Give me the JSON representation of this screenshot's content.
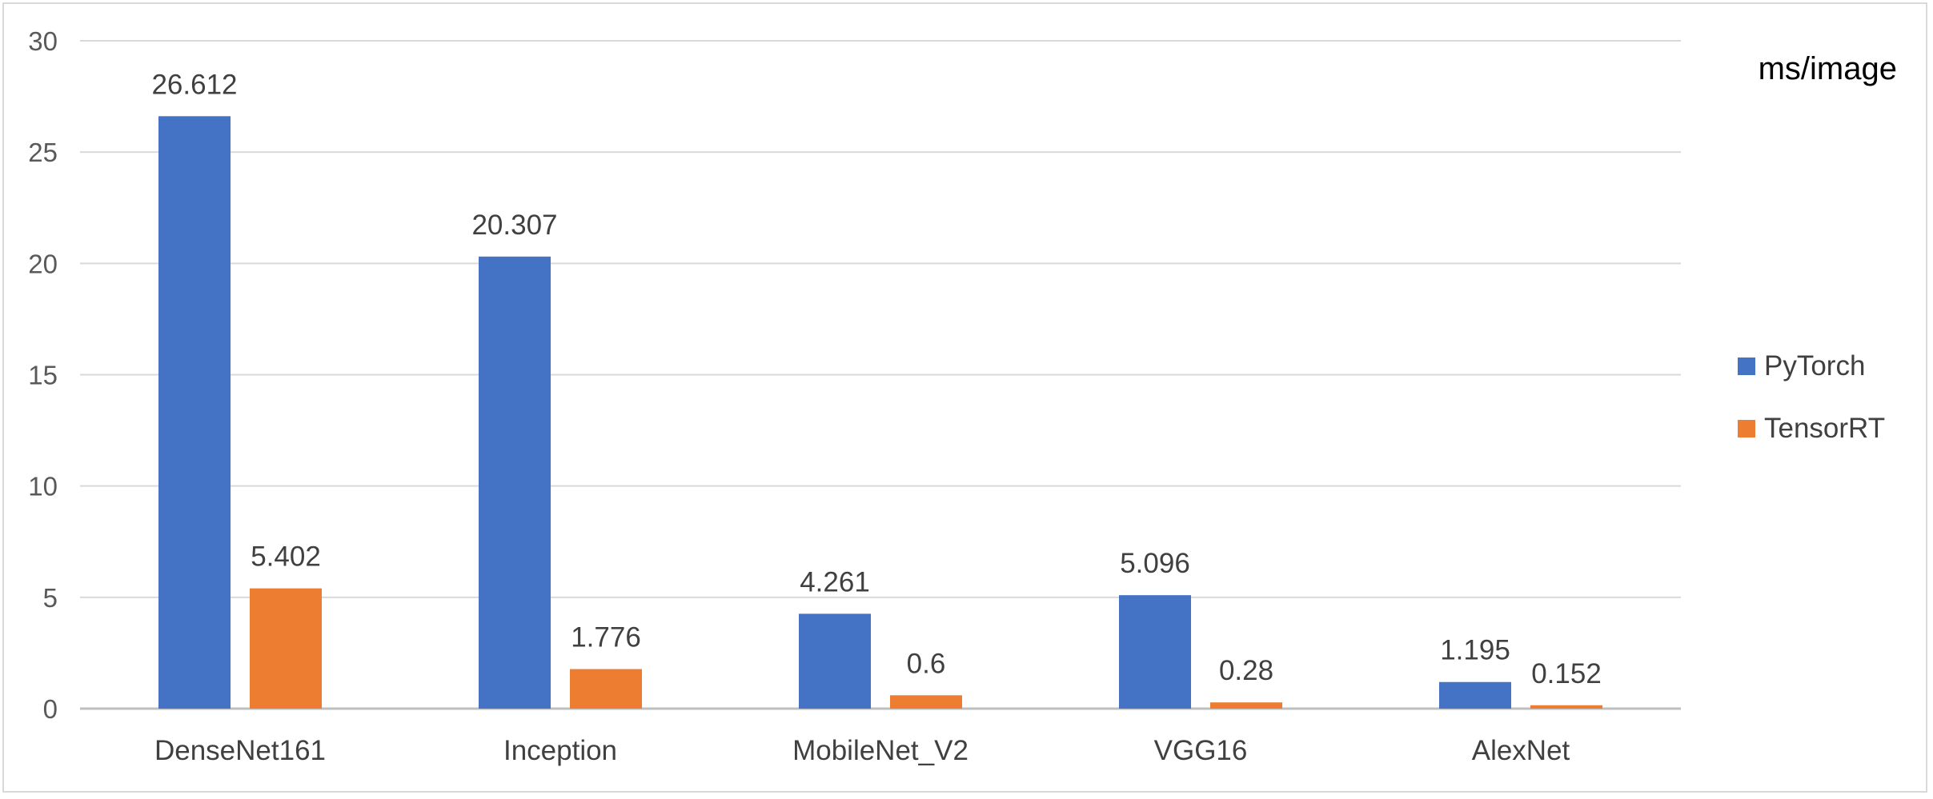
{
  "chart_data": {
    "type": "bar",
    "unit_label": "ms/image",
    "categories": [
      "DenseNet161",
      "Inception",
      "MobileNet_V2",
      "VGG16",
      "AlexNet"
    ],
    "series": [
      {
        "name": "PyTorch",
        "color": "#4472C4",
        "values": [
          26.612,
          20.307,
          4.261,
          5.096,
          1.195
        ]
      },
      {
        "name": "TensorRT",
        "color": "#ED7D31",
        "values": [
          5.402,
          1.776,
          0.6,
          0.28,
          0.152
        ]
      }
    ],
    "data_labels": [
      [
        "26.612",
        "20.307",
        "4.261",
        "5.096",
        "1.195"
      ],
      [
        "5.402",
        "1.776",
        "0.6",
        "0.28",
        "0.152"
      ]
    ],
    "y_ticks": [
      "0",
      "5",
      "10",
      "15",
      "20",
      "25",
      "30"
    ],
    "ylim": [
      0,
      30
    ],
    "grid": true,
    "legend_position": "right"
  }
}
